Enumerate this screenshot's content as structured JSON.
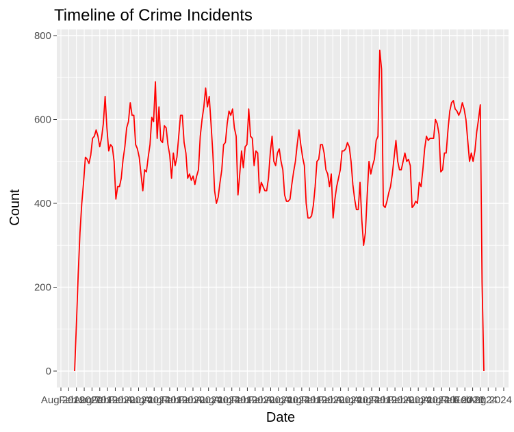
{
  "chart_data": {
    "type": "line",
    "title": "Timeline of Crime Incidents",
    "xlabel": "Date",
    "ylabel": "Count",
    "ylim": [
      0,
      800
    ],
    "y_ticks": [
      0,
      200,
      400,
      600,
      800
    ],
    "x_tick_labels": [
      "Aug 2019",
      "Feb 2020",
      "Feb 2024",
      "Aug 2024"
    ],
    "grid": true,
    "line_color": "#ff0000",
    "panel_color": "#ebebeb",
    "grid_color": "#ffffff",
    "series": [
      {
        "values": [
          0,
          110,
          230,
          330,
          400,
          450,
          510,
          505,
          495,
          515,
          555,
          560,
          575,
          560,
          535,
          555,
          590,
          655,
          580,
          525,
          540,
          535,
          500,
          410,
          440,
          440,
          460,
          505,
          535,
          580,
          595,
          640,
          610,
          610,
          540,
          530,
          510,
          470,
          430,
          480,
          475,
          510,
          540,
          605,
          595,
          690,
          555,
          630,
          550,
          545,
          585,
          580,
          540,
          515,
          460,
          520,
          490,
          510,
          560,
          610,
          610,
          545,
          520,
          460,
          470,
          455,
          465,
          445,
          465,
          480,
          560,
          600,
          630,
          675,
          630,
          655,
          590,
          520,
          430,
          400,
          415,
          450,
          480,
          540,
          545,
          590,
          620,
          610,
          625,
          580,
          560,
          420,
          470,
          525,
          485,
          535,
          540,
          625,
          560,
          555,
          490,
          525,
          520,
          425,
          450,
          440,
          430,
          430,
          460,
          520,
          560,
          500,
          490,
          520,
          530,
          500,
          480,
          420,
          405,
          405,
          410,
          445,
          475,
          500,
          540,
          575,
          540,
          510,
          490,
          400,
          365,
          365,
          370,
          395,
          440,
          500,
          505,
          540,
          540,
          520,
          480,
          470,
          440,
          470,
          365,
          410,
          440,
          460,
          480,
          525,
          525,
          530,
          545,
          535,
          500,
          445,
          410,
          385,
          385,
          450,
          360,
          300,
          330,
          420,
          500,
          470,
          490,
          505,
          550,
          560,
          765,
          720,
          395,
          390,
          405,
          425,
          440,
          470,
          510,
          550,
          500,
          480,
          480,
          500,
          520,
          500,
          505,
          490,
          390,
          395,
          405,
          400,
          450,
          440,
          480,
          530,
          560,
          550,
          555,
          555,
          555,
          600,
          590,
          565,
          475,
          480,
          520,
          520,
          575,
          620,
          640,
          645,
          625,
          620,
          610,
          620,
          640,
          625,
          600,
          550,
          500,
          520,
          500,
          525,
          570,
          600,
          635,
          210,
          0
        ]
      }
    ]
  }
}
